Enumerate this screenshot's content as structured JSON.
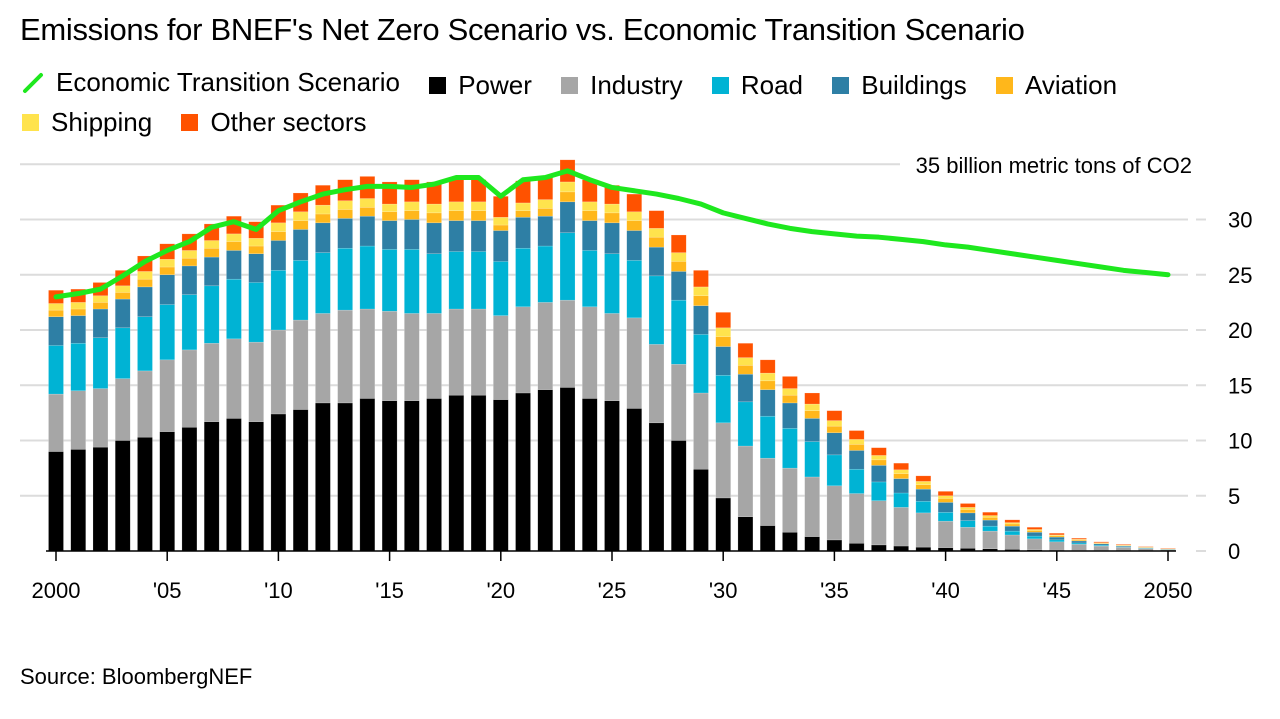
{
  "chart_data": {
    "type": "bar",
    "stacked": true,
    "title": "Emissions for BNEF's Net Zero Scenario vs. Economic Transition Scenario",
    "ylabel": "35 billion metric tons of CO2",
    "xlabel": "",
    "ylim": [
      0,
      35
    ],
    "yticks": [
      0,
      5,
      10,
      15,
      20,
      25,
      30
    ],
    "ytick_labels": [
      "0",
      "5",
      "10",
      "15",
      "20",
      "25",
      "30"
    ],
    "ytop_label": "35 billion metric tons of CO2",
    "grid": true,
    "legend_placement": "top",
    "source": "Source: BloombergNEF",
    "x": [
      2000,
      2001,
      2002,
      2003,
      2004,
      2005,
      2006,
      2007,
      2008,
      2009,
      2010,
      2011,
      2012,
      2013,
      2014,
      2015,
      2016,
      2017,
      2018,
      2019,
      2020,
      2021,
      2022,
      2023,
      2024,
      2025,
      2026,
      2027,
      2028,
      2029,
      2030,
      2031,
      2032,
      2033,
      2034,
      2035,
      2036,
      2037,
      2038,
      2039,
      2040,
      2041,
      2042,
      2043,
      2044,
      2045,
      2046,
      2047,
      2048,
      2049,
      2050
    ],
    "xtick_values": [
      2000,
      2005,
      2010,
      2015,
      2020,
      2025,
      2030,
      2035,
      2040,
      2045,
      2050
    ],
    "xtick_labels": [
      "2000",
      "'05",
      "'10",
      "'15",
      "'20",
      "'25",
      "'30",
      "'35",
      "'40",
      "'45",
      "2050"
    ],
    "series": [
      {
        "name": "Power",
        "color": "#000000",
        "values": [
          9.0,
          9.2,
          9.4,
          10.0,
          10.3,
          10.8,
          11.2,
          11.7,
          12.0,
          11.7,
          12.4,
          12.8,
          13.4,
          13.4,
          13.8,
          13.6,
          13.6,
          13.8,
          14.1,
          14.1,
          13.7,
          14.3,
          14.6,
          14.8,
          13.8,
          13.6,
          12.9,
          11.6,
          10.0,
          7.4,
          4.8,
          3.1,
          2.3,
          1.7,
          1.3,
          1.0,
          0.7,
          0.55,
          0.45,
          0.35,
          0.3,
          0.25,
          0.2,
          0.15,
          0.1,
          0.08,
          0.06,
          0.05,
          0.04,
          0.03,
          0.02
        ]
      },
      {
        "name": "Industry",
        "color": "#a6a6a6",
        "values": [
          5.2,
          5.3,
          5.3,
          5.6,
          6.0,
          6.5,
          7.0,
          7.1,
          7.2,
          7.2,
          7.6,
          8.1,
          8.1,
          8.4,
          8.1,
          8.1,
          7.9,
          7.7,
          7.8,
          7.8,
          7.6,
          7.8,
          7.9,
          7.9,
          8.3,
          7.9,
          8.2,
          7.1,
          6.9,
          6.9,
          6.8,
          6.4,
          6.1,
          5.8,
          5.4,
          4.9,
          4.5,
          4.0,
          3.5,
          3.1,
          2.4,
          1.9,
          1.6,
          1.3,
          1.0,
          0.75,
          0.55,
          0.4,
          0.3,
          0.2,
          0.12
        ]
      },
      {
        "name": "Road",
        "color": "#00b3d4",
        "values": [
          4.4,
          4.3,
          4.6,
          4.6,
          4.9,
          5.0,
          5.0,
          5.2,
          5.4,
          5.4,
          5.4,
          5.4,
          5.5,
          5.6,
          5.7,
          5.6,
          5.8,
          5.4,
          5.2,
          5.2,
          4.9,
          5.3,
          5.1,
          6.1,
          5.1,
          5.4,
          5.2,
          6.2,
          5.8,
          5.3,
          4.3,
          4.0,
          3.8,
          3.6,
          3.2,
          2.8,
          2.2,
          1.7,
          1.3,
          1.05,
          0.8,
          0.6,
          0.45,
          0.35,
          0.25,
          0.18,
          0.12,
          0.08,
          0.05,
          0.03,
          0.02
        ]
      },
      {
        "name": "Buildings",
        "color": "#2e7fa5",
        "values": [
          2.6,
          2.5,
          2.6,
          2.6,
          2.7,
          2.7,
          2.6,
          2.6,
          2.6,
          2.6,
          2.7,
          2.8,
          2.7,
          2.7,
          2.7,
          2.6,
          2.7,
          2.8,
          2.8,
          2.8,
          2.8,
          2.8,
          2.7,
          2.8,
          2.7,
          2.8,
          2.7,
          2.6,
          2.6,
          2.6,
          2.6,
          2.5,
          2.4,
          2.3,
          2.1,
          2.0,
          1.7,
          1.5,
          1.3,
          1.1,
          0.9,
          0.7,
          0.55,
          0.45,
          0.35,
          0.25,
          0.18,
          0.12,
          0.08,
          0.05,
          0.03
        ]
      },
      {
        "name": "Aviation",
        "color": "#ffb71b",
        "values": [
          0.6,
          0.6,
          0.6,
          0.6,
          0.7,
          0.7,
          0.7,
          0.8,
          0.8,
          0.7,
          0.8,
          0.8,
          0.8,
          0.8,
          0.8,
          0.8,
          0.8,
          0.9,
          0.9,
          0.9,
          0.5,
          0.6,
          0.7,
          0.9,
          0.9,
          0.9,
          0.9,
          0.9,
          0.9,
          0.9,
          0.9,
          0.8,
          0.8,
          0.7,
          0.7,
          0.6,
          0.55,
          0.5,
          0.45,
          0.4,
          0.35,
          0.3,
          0.25,
          0.2,
          0.15,
          0.12,
          0.09,
          0.06,
          0.04,
          0.03,
          0.02
        ]
      },
      {
        "name": "Shipping",
        "color": "#ffe34d",
        "values": [
          0.6,
          0.6,
          0.6,
          0.6,
          0.7,
          0.7,
          0.7,
          0.7,
          0.7,
          0.7,
          0.8,
          0.8,
          0.8,
          0.8,
          0.8,
          0.7,
          0.8,
          0.8,
          0.8,
          0.8,
          0.7,
          0.7,
          0.8,
          0.9,
          0.8,
          0.8,
          0.8,
          0.8,
          0.8,
          0.8,
          0.8,
          0.7,
          0.7,
          0.6,
          0.6,
          0.5,
          0.45,
          0.4,
          0.35,
          0.3,
          0.25,
          0.2,
          0.16,
          0.12,
          0.1,
          0.08,
          0.06,
          0.04,
          0.03,
          0.02,
          0.01
        ]
      },
      {
        "name": "Other sectors",
        "color": "#ff5200",
        "values": [
          1.2,
          1.2,
          1.2,
          1.4,
          1.4,
          1.4,
          1.5,
          1.5,
          1.6,
          1.5,
          1.6,
          1.7,
          1.8,
          1.9,
          2.0,
          2.0,
          2.0,
          2.0,
          2.1,
          2.0,
          1.9,
          2.0,
          2.0,
          2.0,
          2.0,
          1.7,
          1.6,
          1.6,
          1.6,
          1.5,
          1.4,
          1.3,
          1.2,
          1.1,
          1.0,
          0.9,
          0.8,
          0.7,
          0.6,
          0.5,
          0.4,
          0.35,
          0.3,
          0.25,
          0.2,
          0.15,
          0.1,
          0.08,
          0.06,
          0.04,
          0.02
        ]
      }
    ],
    "line_series": {
      "name": "Economic Transition Scenario",
      "color": "#1ee81e",
      "x": [
        2000,
        2001,
        2002,
        2003,
        2004,
        2005,
        2006,
        2007,
        2008,
        2009,
        2010,
        2011,
        2012,
        2013,
        2014,
        2015,
        2016,
        2017,
        2018,
        2019,
        2020,
        2021,
        2022,
        2023,
        2024,
        2025,
        2026,
        2027,
        2028,
        2029,
        2030,
        2031,
        2032,
        2033,
        2034,
        2035,
        2036,
        2037,
        2038,
        2039,
        2040,
        2041,
        2042,
        2043,
        2044,
        2045,
        2046,
        2047,
        2048,
        2049,
        2050
      ],
      "values": [
        23.0,
        23.3,
        23.7,
        24.9,
        26.2,
        27.2,
        28.0,
        29.3,
        29.8,
        29.1,
        30.8,
        31.6,
        32.3,
        32.7,
        33.0,
        33.0,
        32.9,
        33.2,
        33.8,
        33.8,
        32.1,
        33.6,
        33.8,
        34.4,
        33.6,
        32.9,
        32.6,
        32.3,
        31.9,
        31.4,
        30.6,
        30.1,
        29.6,
        29.2,
        28.9,
        28.7,
        28.5,
        28.4,
        28.2,
        28.0,
        27.7,
        27.5,
        27.2,
        26.9,
        26.6,
        26.3,
        26.0,
        25.7,
        25.4,
        25.2,
        25.0
      ]
    }
  },
  "legend": {
    "items": [
      {
        "label": "Economic Transition Scenario",
        "type": "line",
        "color": "#1ee81e",
        "icon": "green-line-icon"
      },
      {
        "label": "Power",
        "type": "swatch",
        "color": "#000000"
      },
      {
        "label": "Industry",
        "type": "swatch",
        "color": "#a6a6a6"
      },
      {
        "label": "Road",
        "type": "swatch",
        "color": "#00b3d4"
      },
      {
        "label": "Buildings",
        "type": "swatch",
        "color": "#2e7fa5"
      },
      {
        "label": "Aviation",
        "type": "swatch",
        "color": "#ffb71b"
      },
      {
        "label": "Shipping",
        "type": "swatch",
        "color": "#ffe34d"
      },
      {
        "label": "Other sectors",
        "type": "swatch",
        "color": "#ff5200"
      }
    ]
  }
}
